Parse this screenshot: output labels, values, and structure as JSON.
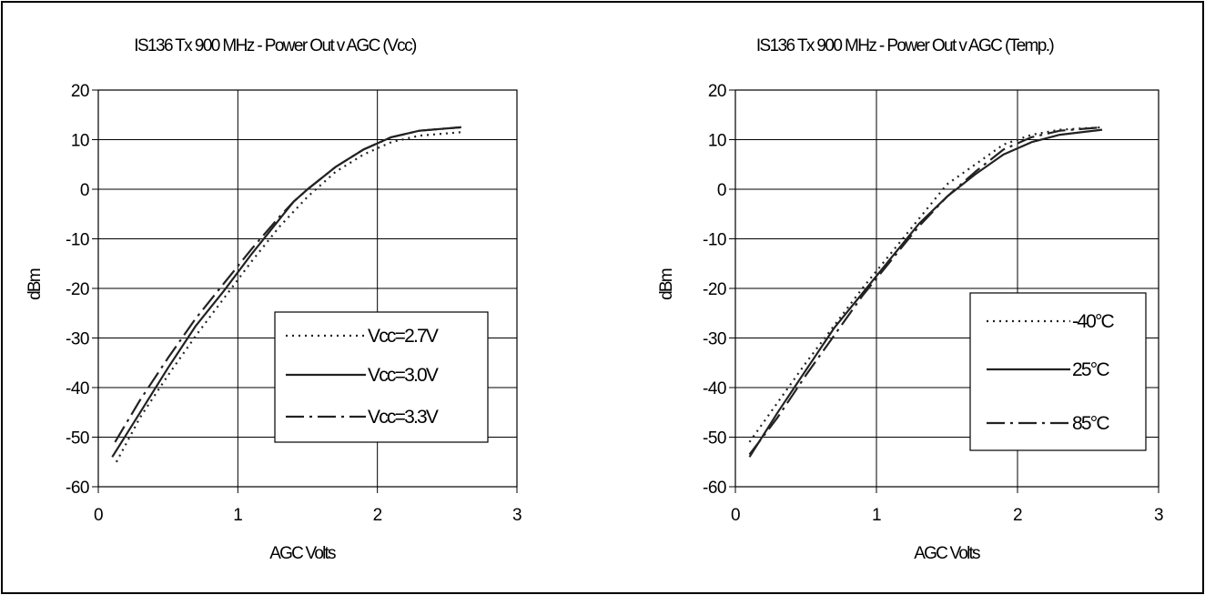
{
  "chart_data": [
    {
      "type": "line",
      "title": "IS136 Tx 900 MHz - Power Out v AGC (Vcc)",
      "xlabel": "AGC Volts",
      "ylabel": "dBm",
      "xlim": [
        0,
        3
      ],
      "ylim": [
        -60,
        20
      ],
      "xticks": [
        "0",
        "1",
        "2",
        "3"
      ],
      "yticks": [
        "20",
        "10",
        "0",
        "-10",
        "-20",
        "-30",
        "-40",
        "-50",
        "-60"
      ],
      "grid": "vertical and horizontal",
      "legend_position": "lower-right",
      "series": [
        {
          "name": "Vcc=2.7V",
          "style": "dotted",
          "x": [
            0.13,
            0.3,
            0.5,
            0.7,
            0.9,
            1.1,
            1.3,
            1.5,
            1.7,
            1.9,
            2.1,
            2.3,
            2.6
          ],
          "y": [
            -55,
            -46,
            -37.5,
            -29.5,
            -22,
            -14.5,
            -7.5,
            -1.5,
            3.5,
            7,
            9.5,
            10.8,
            11.5
          ]
        },
        {
          "name": "Vcc=3.0V",
          "style": "solid",
          "x": [
            0.1,
            0.3,
            0.5,
            0.7,
            0.9,
            1.1,
            1.3,
            1.4,
            1.5,
            1.7,
            1.9,
            2.1,
            2.3,
            2.6
          ],
          "y": [
            -54,
            -45,
            -36,
            -27.5,
            -20.5,
            -13,
            -6,
            -2.5,
            0,
            4.5,
            8,
            10.5,
            11.8,
            12.5
          ]
        },
        {
          "name": "Vcc=3.3V",
          "style": "dash-dot",
          "x": [
            0.12,
            0.3,
            0.5,
            0.7,
            0.9,
            1.1,
            1.3,
            1.4,
            1.5,
            1.7,
            1.9,
            2.1,
            2.3,
            2.6
          ],
          "y": [
            -51,
            -42.5,
            -34,
            -26,
            -19,
            -12,
            -5.5,
            -2.5,
            0,
            4.5,
            8,
            10.5,
            11.8,
            12.5
          ]
        }
      ]
    },
    {
      "type": "line",
      "title": "IS136 Tx 900 MHz - Power Out v AGC (Temp.)",
      "xlabel": "AGC Volts",
      "ylabel": "dBm",
      "xlim": [
        0,
        3
      ],
      "ylim": [
        -60,
        20
      ],
      "xticks": [
        "0",
        "1",
        "2",
        "3"
      ],
      "yticks": [
        "20",
        "10",
        "0",
        "-10",
        "-20",
        "-30",
        "-40",
        "-50",
        "-60"
      ],
      "grid": "vertical and horizontal",
      "legend_position": "lower-right",
      "series": [
        {
          "name": "-40°C",
          "style": "dotted",
          "x": [
            0.1,
            0.3,
            0.5,
            0.7,
            0.9,
            1.1,
            1.3,
            1.5,
            1.7,
            1.9,
            2.1,
            2.3,
            2.6
          ],
          "y": [
            -51,
            -43,
            -35,
            -27.5,
            -20,
            -13,
            -6,
            1,
            5,
            9,
            11,
            12,
            12.5
          ]
        },
        {
          "name": "25°C",
          "style": "solid",
          "x": [
            0.1,
            0.3,
            0.5,
            0.7,
            0.9,
            1.1,
            1.3,
            1.5,
            1.7,
            1.9,
            2.1,
            2.3,
            2.6
          ],
          "y": [
            -54,
            -45,
            -36.5,
            -28,
            -21,
            -14,
            -7,
            -1.5,
            3,
            7,
            9.5,
            11,
            12
          ]
        },
        {
          "name": "85°C",
          "style": "dash-dot",
          "x": [
            0.1,
            0.3,
            0.5,
            0.7,
            0.9,
            1.1,
            1.3,
            1.5,
            1.7,
            1.9,
            2.1,
            2.3,
            2.6
          ],
          "y": [
            -53.5,
            -46,
            -37.5,
            -29.5,
            -21.5,
            -14.5,
            -7.5,
            -1.5,
            3.5,
            8,
            10.5,
            11.8,
            12.5
          ]
        }
      ]
    }
  ]
}
